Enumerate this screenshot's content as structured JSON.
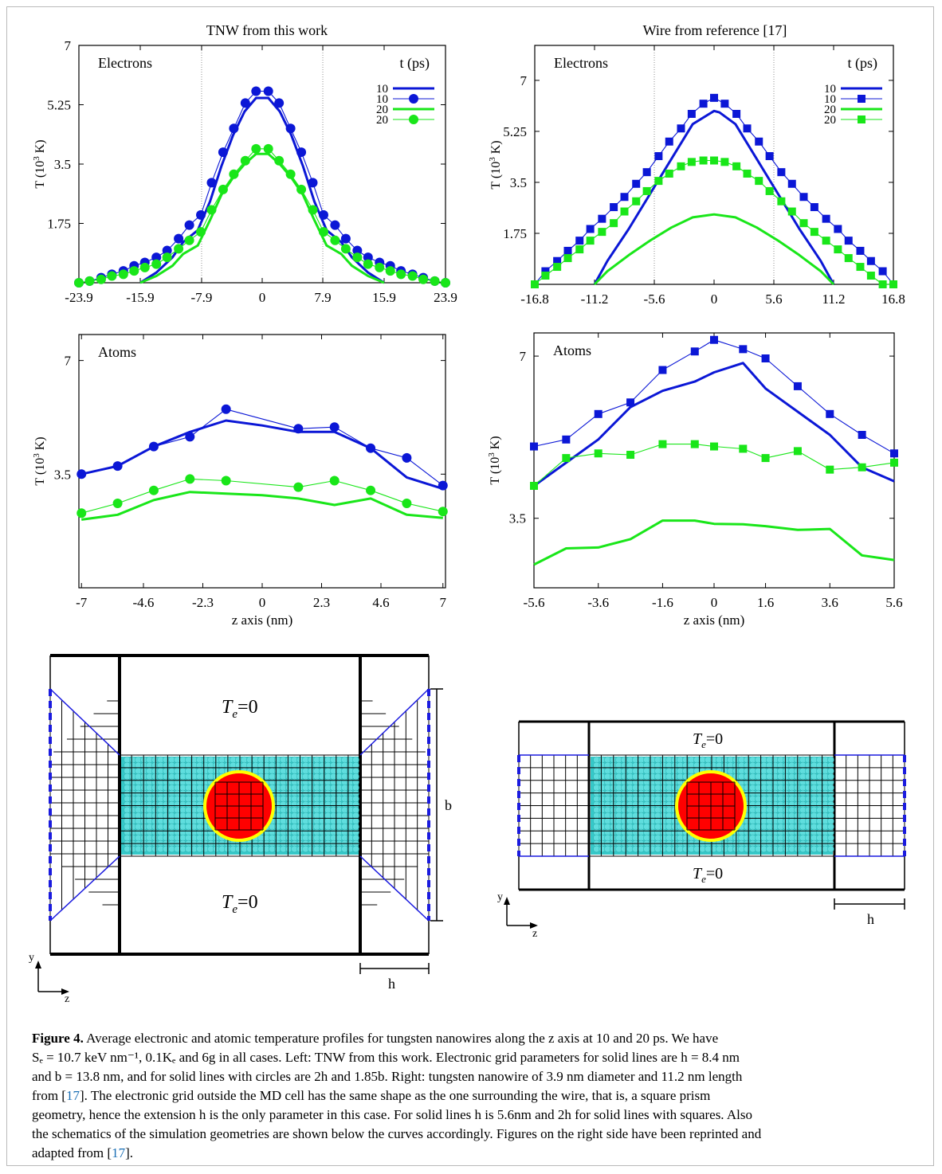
{
  "panels": {
    "left_title": "TNW from this work",
    "right_title": "Wire from reference [17]",
    "electrons_label": "Electrons",
    "atoms_label": "Atoms",
    "ylabel": "T (10",
    "ylabel_exp": "3",
    "ylabel_tail": " K)",
    "xlabel": "z axis (nm)",
    "legend_title": "t (ps)"
  },
  "series_style": {
    "blue": "#0b17d6",
    "green": "#19e619"
  },
  "chart_data": [
    {
      "id": "left-electrons",
      "type": "line",
      "text_label": "Electrons",
      "xlim": [
        -23.9,
        23.9
      ],
      "ylim": [
        0,
        7
      ],
      "xticks": [
        "-23.9",
        "-15.9",
        "-7.9",
        "0",
        "7.9",
        "15.9",
        "23.9"
      ],
      "xtick_values": [
        -23.9,
        -15.9,
        -7.9,
        0,
        7.9,
        15.9,
        23.9
      ],
      "yticks": [
        "1.75",
        "3.5",
        "5.25",
        "7"
      ],
      "ytick_values": [
        1.75,
        3.5,
        5.25,
        7
      ],
      "vlines": [
        -7.9,
        7.9
      ],
      "legend": {
        "title": "t (ps)",
        "entries": [
          "10",
          "10",
          "20",
          "20"
        ]
      },
      "series": [
        {
          "name": "10",
          "style": "line",
          "color": "blue",
          "x": [
            -15.9,
            -13.8,
            -11.7,
            -10.3,
            -8.4,
            -6.8,
            -5.3,
            -3.8,
            -2.3,
            -0.8,
            0.8,
            2.3,
            3.8,
            5.3,
            6.8,
            8.4,
            10.3,
            11.7,
            13.8,
            15.9
          ],
          "y": [
            0.0,
            0.3,
            0.75,
            1.2,
            1.55,
            2.4,
            3.45,
            4.35,
            5.05,
            5.45,
            5.45,
            5.05,
            4.35,
            3.45,
            2.4,
            1.55,
            1.2,
            0.75,
            0.3,
            0.0
          ]
        },
        {
          "name": "10",
          "style": "circles",
          "color": "blue",
          "x": [
            -23.9,
            -22.5,
            -21.0,
            -19.6,
            -18.1,
            -16.7,
            -15.3,
            -13.8,
            -12.4,
            -10.9,
            -9.5,
            -8.0,
            -6.6,
            -5.1,
            -3.7,
            -2.2,
            -0.8,
            0.8,
            2.2,
            3.7,
            5.1,
            6.6,
            8.0,
            9.5,
            10.9,
            12.4,
            13.8,
            15.3,
            16.7,
            18.1,
            19.6,
            21.0,
            22.5,
            23.9
          ],
          "y": [
            0.0,
            0.05,
            0.15,
            0.25,
            0.35,
            0.5,
            0.6,
            0.75,
            0.95,
            1.3,
            1.7,
            2.0,
            2.95,
            3.85,
            4.55,
            5.3,
            5.65,
            5.65,
            5.3,
            4.55,
            3.85,
            2.95,
            2.0,
            1.7,
            1.3,
            0.95,
            0.75,
            0.6,
            0.5,
            0.35,
            0.25,
            0.15,
            0.05,
            0.0
          ]
        },
        {
          "name": "20",
          "style": "line",
          "color": "green",
          "x": [
            -15.9,
            -13.8,
            -11.7,
            -10.3,
            -8.4,
            -6.8,
            -5.3,
            -3.8,
            -2.3,
            -0.8,
            0.8,
            2.3,
            3.8,
            5.3,
            6.8,
            8.4,
            10.3,
            11.7,
            13.8,
            15.9
          ],
          "y": [
            0.0,
            0.2,
            0.5,
            0.85,
            1.1,
            1.85,
            2.6,
            3.1,
            3.5,
            3.8,
            3.8,
            3.5,
            3.1,
            2.6,
            1.85,
            1.1,
            0.85,
            0.5,
            0.2,
            0.0
          ]
        },
        {
          "name": "20",
          "style": "circles",
          "color": "green",
          "x": [
            -23.9,
            -22.5,
            -21.0,
            -19.6,
            -18.1,
            -16.7,
            -15.3,
            -13.8,
            -12.4,
            -10.9,
            -9.5,
            -8.0,
            -6.6,
            -5.1,
            -3.7,
            -2.2,
            -0.8,
            0.8,
            2.2,
            3.7,
            5.1,
            6.6,
            8.0,
            9.5,
            10.9,
            12.4,
            13.8,
            15.3,
            16.7,
            18.1,
            19.6,
            21.0,
            22.5,
            23.9
          ],
          "y": [
            0.0,
            0.05,
            0.1,
            0.2,
            0.25,
            0.35,
            0.45,
            0.55,
            0.75,
            1.0,
            1.25,
            1.5,
            2.15,
            2.75,
            3.2,
            3.6,
            3.95,
            3.95,
            3.6,
            3.2,
            2.75,
            2.15,
            1.5,
            1.25,
            1.0,
            0.75,
            0.55,
            0.45,
            0.35,
            0.25,
            0.2,
            0.1,
            0.05,
            0.0
          ]
        }
      ]
    },
    {
      "id": "right-electrons",
      "type": "line",
      "text_label": "Electrons",
      "xlim": [
        -16.8,
        16.8
      ],
      "ylim": [
        0,
        8.2
      ],
      "xticks": [
        "-16.8",
        "-11.2",
        "-5.6",
        "0",
        "5.6",
        "11.2",
        "16.8"
      ],
      "xtick_values": [
        -16.8,
        -11.2,
        -5.6,
        0,
        5.6,
        11.2,
        16.8
      ],
      "yticks": [
        "1.75",
        "3.5",
        "5.25",
        "7"
      ],
      "ytick_values": [
        1.75,
        3.5,
        5.25,
        7
      ],
      "vlines": [
        -5.6,
        5.6
      ],
      "legend": {
        "title": "t (ps)",
        "entries": [
          "10",
          "10",
          "20",
          "20"
        ]
      },
      "series": [
        {
          "name": "10",
          "style": "line",
          "color": "blue",
          "x": [
            -11.2,
            -10.0,
            -8.0,
            -6.0,
            -4.0,
            -2.0,
            0,
            0.5,
            2.0,
            4.0,
            6.0,
            8.0,
            10.0,
            11.2
          ],
          "y": [
            0.0,
            0.8,
            1.9,
            3.1,
            4.3,
            5.5,
            5.95,
            5.9,
            5.5,
            4.3,
            3.1,
            1.9,
            0.8,
            0.0
          ]
        },
        {
          "name": "10",
          "style": "squares",
          "color": "blue",
          "x": [
            -16.8,
            -15.8,
            -14.7,
            -13.7,
            -12.6,
            -11.6,
            -10.5,
            -9.4,
            -8.4,
            -7.3,
            -6.3,
            -5.2,
            -4.2,
            -3.1,
            -2.1,
            -1.0,
            0,
            1.0,
            2.1,
            3.1,
            4.2,
            5.2,
            6.3,
            7.3,
            8.4,
            9.4,
            10.5,
            11.6,
            12.6,
            13.7,
            14.7,
            15.8,
            16.8
          ],
          "y": [
            0.0,
            0.45,
            0.8,
            1.15,
            1.5,
            1.9,
            2.25,
            2.65,
            3.0,
            3.45,
            3.85,
            4.4,
            4.9,
            5.35,
            5.85,
            6.2,
            6.4,
            6.2,
            5.85,
            5.35,
            4.9,
            4.4,
            3.85,
            3.45,
            3.0,
            2.65,
            2.25,
            1.9,
            1.5,
            1.15,
            0.8,
            0.45,
            0.0
          ]
        },
        {
          "name": "20",
          "style": "line",
          "color": "green",
          "x": [
            -11.2,
            -10.0,
            -8.0,
            -6.0,
            -4.0,
            -2.0,
            0,
            2.0,
            4.0,
            6.0,
            8.0,
            10.0,
            11.2
          ],
          "y": [
            0.0,
            0.45,
            1.0,
            1.5,
            1.95,
            2.3,
            2.4,
            2.3,
            1.95,
            1.5,
            1.0,
            0.45,
            0.0
          ]
        },
        {
          "name": "20",
          "style": "squares",
          "color": "green",
          "x": [
            -16.8,
            -15.8,
            -14.7,
            -13.7,
            -12.6,
            -11.6,
            -10.5,
            -9.4,
            -8.4,
            -7.3,
            -6.3,
            -5.2,
            -4.2,
            -3.1,
            -2.1,
            -1.0,
            0,
            1.0,
            2.1,
            3.1,
            4.2,
            5.2,
            6.3,
            7.3,
            8.4,
            9.4,
            10.5,
            11.6,
            12.6,
            13.7,
            14.7,
            15.8,
            16.8
          ],
          "y": [
            0.0,
            0.3,
            0.6,
            0.9,
            1.2,
            1.5,
            1.8,
            2.1,
            2.5,
            2.85,
            3.2,
            3.55,
            3.8,
            4.05,
            4.2,
            4.25,
            4.25,
            4.2,
            4.05,
            3.8,
            3.55,
            3.2,
            2.85,
            2.5,
            2.1,
            1.8,
            1.5,
            1.2,
            0.9,
            0.6,
            0.3,
            0.0,
            0.0
          ]
        }
      ]
    },
    {
      "id": "left-atoms",
      "type": "line",
      "text_label": "Atoms",
      "xlim": [
        -7.1,
        7.1
      ],
      "ylim": [
        0,
        7.8
      ],
      "xticks": [
        "-7",
        "-4.6",
        "-2.3",
        "0",
        "2.3",
        "4.6",
        "7"
      ],
      "xtick_values": [
        -7,
        -4.6,
        -2.3,
        0,
        2.3,
        4.6,
        7
      ],
      "yticks": [
        "3.5",
        "7"
      ],
      "ytick_values": [
        3.5,
        7
      ],
      "vlines": [],
      "xlabel": "z axis (nm)",
      "series": [
        {
          "name": "10",
          "style": "line",
          "color": "blue",
          "x": [
            -7,
            -5.6,
            -4.2,
            -2.8,
            -1.4,
            0,
            1.4,
            2.8,
            4.2,
            5.6,
            7
          ],
          "y": [
            3.5,
            3.75,
            4.35,
            4.8,
            5.15,
            5.0,
            4.8,
            4.8,
            4.3,
            3.4,
            3.05
          ]
        },
        {
          "name": "10",
          "style": "circles",
          "color": "blue",
          "x": [
            -7,
            -5.6,
            -4.2,
            -2.8,
            -1.4,
            1.4,
            2.8,
            4.2,
            5.6,
            7
          ],
          "y": [
            3.5,
            3.75,
            4.35,
            4.65,
            5.5,
            4.9,
            4.95,
            4.3,
            4.0,
            3.15
          ]
        },
        {
          "name": "20",
          "style": "line",
          "color": "green",
          "x": [
            -7,
            -5.6,
            -4.2,
            -2.8,
            -1.4,
            0,
            1.4,
            2.8,
            4.2,
            5.6,
            7
          ],
          "y": [
            2.1,
            2.25,
            2.7,
            2.95,
            2.9,
            2.85,
            2.75,
            2.55,
            2.75,
            2.25,
            2.15
          ]
        },
        {
          "name": "20",
          "style": "circles",
          "color": "green",
          "x": [
            -7,
            -5.6,
            -4.2,
            -2.8,
            -1.4,
            1.4,
            2.8,
            4.2,
            5.6,
            7
          ],
          "y": [
            2.3,
            2.6,
            3.0,
            3.35,
            3.3,
            3.1,
            3.3,
            3.0,
            2.6,
            2.35
          ]
        }
      ]
    },
    {
      "id": "right-atoms",
      "type": "line",
      "text_label": "Atoms",
      "xlim": [
        -5.6,
        5.6
      ],
      "ylim": [
        2.0,
        7.5
      ],
      "xticks": [
        "-5.6",
        "-3.6",
        "-1.6",
        "0",
        "1.6",
        "3.6",
        "5.6"
      ],
      "xtick_values": [
        -5.6,
        -3.6,
        -1.6,
        0,
        1.6,
        3.6,
        5.6
      ],
      "yticks": [
        "3.5",
        "7"
      ],
      "ytick_values": [
        3.5,
        7
      ],
      "vlines": [],
      "xlabel": "z axis (nm)",
      "series": [
        {
          "name": "10",
          "style": "line",
          "color": "blue",
          "x": [
            -5.6,
            -4.6,
            -3.6,
            -2.6,
            -1.6,
            -0.6,
            0,
            0.9,
            1.6,
            2.6,
            3.6,
            4.6,
            5.6
          ],
          "y": [
            4.2,
            4.7,
            5.2,
            5.9,
            6.25,
            6.45,
            6.65,
            6.85,
            6.3,
            5.8,
            5.3,
            4.6,
            4.3
          ]
        },
        {
          "name": "10",
          "style": "squares",
          "color": "blue",
          "x": [
            -5.6,
            -4.6,
            -3.6,
            -2.6,
            -1.6,
            -0.6,
            0,
            0.9,
            1.6,
            2.6,
            3.6,
            4.6,
            5.6
          ],
          "y": [
            5.05,
            5.2,
            5.75,
            6.0,
            6.7,
            7.1,
            7.35,
            7.15,
            6.95,
            6.35,
            5.75,
            5.3,
            4.9
          ]
        },
        {
          "name": "20",
          "style": "line",
          "color": "green",
          "x": [
            -5.6,
            -4.6,
            -3.6,
            -2.6,
            -1.6,
            -0.6,
            0,
            0.9,
            1.6,
            2.6,
            3.6,
            4.6,
            5.6
          ],
          "y": [
            2.5,
            2.85,
            2.87,
            3.05,
            3.45,
            3.45,
            3.38,
            3.37,
            3.33,
            3.25,
            3.27,
            2.7,
            2.6
          ]
        },
        {
          "name": "20",
          "style": "squares",
          "color": "green",
          "x": [
            -5.6,
            -4.6,
            -3.6,
            -2.6,
            -1.6,
            -0.6,
            0,
            0.9,
            1.6,
            2.6,
            3.6,
            4.6,
            5.6
          ],
          "y": [
            4.2,
            4.8,
            4.9,
            4.87,
            5.1,
            5.1,
            5.05,
            5.0,
            4.8,
            4.95,
            4.55,
            4.6,
            4.7
          ]
        }
      ]
    }
  ],
  "schematic": {
    "te_zero": "T",
    "te_sub": "e",
    "te_eq": "=0",
    "dim_b": "b",
    "dim_h": "h",
    "axis_y": "y",
    "axis_z": "z"
  },
  "caption": {
    "figure_label": "Figure 4.",
    "line1": "Average electronic and atomic temperature profiles for tungsten nanowires along the z axis at 10 and 20 ps. We have",
    "line2": "Sₑ = 10.7 keV nm⁻¹, 0.1Kₑ and 6g in all cases. Left: TNW from this work. Electronic grid parameters for solid lines are h = 8.4 nm",
    "line3": "and b = 13.8 nm, and for solid lines with circles are 2h and 1.85b. Right: tungsten nanowire of 3.9 nm diameter and 11.2 nm length",
    "line4a": "from [",
    "ref1": "17",
    "line4b": "]. The electronic grid outside the MD cell has the same shape as the one surrounding the wire, that is, a square prism",
    "line5": "geometry, hence the extension h is the only parameter in this case. For solid lines h is 5.6nm and 2h for solid lines with squares. Also",
    "line6": "the schematics of the simulation geometries are shown below the curves accordingly. Figures on the right side have been reprinted and",
    "line7a": "adapted from [",
    "ref2": "17",
    "line7b": "]."
  }
}
